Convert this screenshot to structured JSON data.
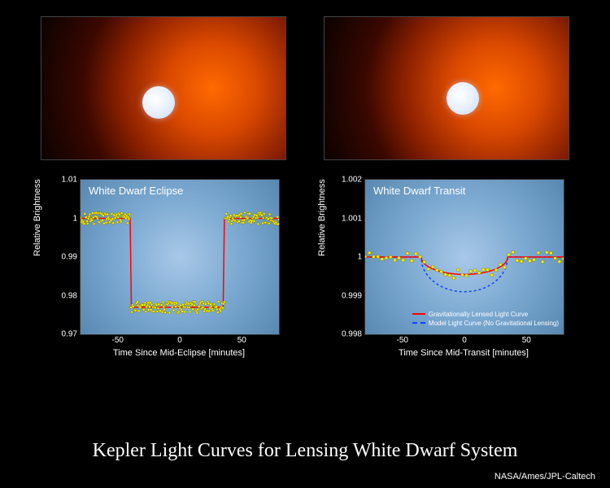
{
  "main_title": "Kepler Light Curves for Lensing White Dwarf System",
  "credit": "NASA/Ames/JPL-Caltech",
  "colors": {
    "background": "#000000",
    "plot_bg_inner": "#a8c8e8",
    "plot_bg_outer": "#5888b0",
    "data_point": "#f8f000",
    "data_point_border": "#606000",
    "curve_red": "#ff0000",
    "curve_blue": "#1040ff",
    "text": "#ffffff"
  },
  "left_chart": {
    "title": "White Dwarf Eclipse",
    "ylabel": "Relative Brightness",
    "xlabel": "Time Since Mid-Eclipse [minutes]",
    "xlim": [
      -80,
      80
    ],
    "ylim": [
      0.97,
      1.01
    ],
    "xticks": [
      -50,
      0,
      50
    ],
    "yticks": [
      0.97,
      0.98,
      0.99,
      1.0,
      1.01
    ],
    "eclipse_depth": 0.977,
    "eclipse_start": -40,
    "eclipse_end": 36,
    "n_points": 280
  },
  "right_chart": {
    "title": "White Dwarf Transit",
    "ylabel": "Relative Brightness",
    "xlabel": "Time Since Mid-Transit [minutes]",
    "xlim": [
      -80,
      80
    ],
    "ylim": [
      0.998,
      1.002
    ],
    "xticks": [
      -50,
      0,
      50
    ],
    "yticks": [
      0.998,
      0.999,
      1.0,
      1.001,
      1.002
    ],
    "lensed_depth": 0.99955,
    "model_depth": 0.9991,
    "transit_start": -35,
    "transit_end": 35,
    "n_points": 48,
    "legend": {
      "red": "Gravitationally Lensed Light Curve",
      "blue": "Model Light Curve (No Gravitational Lensing)"
    }
  }
}
